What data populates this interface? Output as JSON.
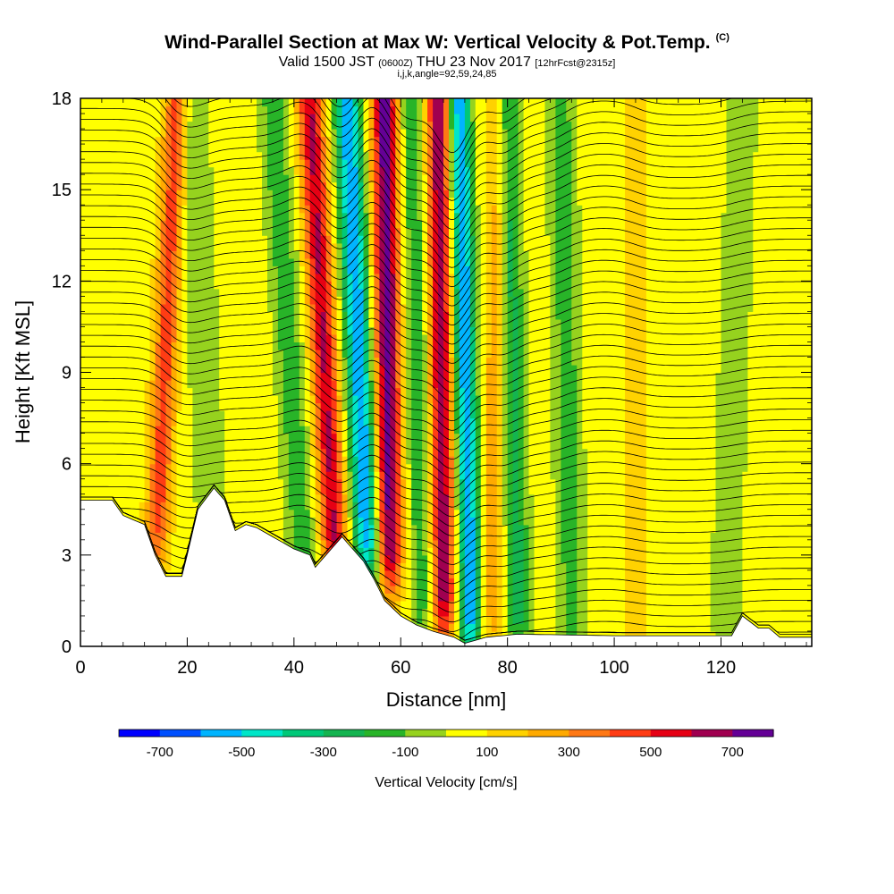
{
  "header": {
    "title": "Wind-Parallel Section at Max W: Vertical Velocity & Pot.Temp.",
    "title_tag": "(C)",
    "valid_prefix": "Valid 1500 JST",
    "valid_utc": "(0600Z)",
    "valid_date": "THU 23 Nov 2017",
    "forecast": "[12hrFcst@2315z]",
    "params": "i,j,k,angle=92,59,24,85"
  },
  "chart_data": {
    "type": "heatmap",
    "xlabel": "Distance [nm]",
    "ylabel": "Height [Kft MSL]",
    "xlim": [
      0,
      137
    ],
    "ylim": [
      0,
      18
    ],
    "x_ticks": [
      0,
      20,
      40,
      60,
      80,
      100,
      120
    ],
    "y_ticks": [
      0,
      3,
      6,
      9,
      12,
      15,
      18
    ],
    "colorbar": {
      "title": "Vertical Velocity [cm/s]",
      "min": -800,
      "max": 800,
      "step": 100,
      "tick_labels": [
        "-700",
        "-500",
        "-300",
        "-100",
        "100",
        "300",
        "500",
        "700"
      ],
      "tick_values": [
        -700,
        -500,
        -300,
        -100,
        100,
        300,
        500,
        700
      ],
      "colors": [
        "#0000ff",
        "#0050ff",
        "#00b4ff",
        "#00e6c8",
        "#00c878",
        "#14b450",
        "#28b428",
        "#96d21e",
        "#ffff00",
        "#ffd200",
        "#ffaa00",
        "#ff7814",
        "#ff3c14",
        "#e60014",
        "#a00050",
        "#640096"
      ]
    },
    "terrain_kft": [
      [
        0,
        4.8
      ],
      [
        6,
        4.8
      ],
      [
        8,
        4.3
      ],
      [
        12,
        4.0
      ],
      [
        14,
        3.0
      ],
      [
        16,
        2.3
      ],
      [
        19,
        2.3
      ],
      [
        20,
        3.0
      ],
      [
        22,
        4.5
      ],
      [
        25,
        5.2
      ],
      [
        27,
        4.8
      ],
      [
        29,
        3.8
      ],
      [
        31,
        4.0
      ],
      [
        33,
        3.9
      ],
      [
        38,
        3.4
      ],
      [
        40,
        3.2
      ],
      [
        43,
        3.0
      ],
      [
        44,
        2.6
      ],
      [
        46,
        3.0
      ],
      [
        49,
        3.6
      ],
      [
        53,
        2.8
      ],
      [
        55,
        2.2
      ],
      [
        57,
        1.5
      ],
      [
        60,
        1.0
      ],
      [
        63,
        0.7
      ],
      [
        66,
        0.5
      ],
      [
        70,
        0.3
      ],
      [
        72,
        0.1
      ],
      [
        76,
        0.3
      ],
      [
        82,
        0.4
      ],
      [
        100,
        0.35
      ],
      [
        122,
        0.35
      ],
      [
        124,
        1.0
      ],
      [
        127,
        0.6
      ],
      [
        129,
        0.6
      ],
      [
        131,
        0.3
      ],
      [
        137,
        0.3
      ]
    ],
    "w_cm_s": {
      "background": 50,
      "bands": [
        {
          "x_base": 14,
          "x_top": 18,
          "peak": 400,
          "width": 2.2,
          "bottom": 4.0
        },
        {
          "x_base": 25,
          "x_top": 21,
          "peak": -150,
          "width": 2.8,
          "bottom": 5.0
        },
        {
          "x_base": 42,
          "x_top": 36,
          "peak": -220,
          "width": 2.6,
          "bottom": 3.0
        },
        {
          "x_base": 48,
          "x_top": 43,
          "peak": 560,
          "width": 2.4,
          "bottom": 3.5
        },
        {
          "x_base": 54,
          "x_top": 50,
          "peak": -650,
          "width": 2.4,
          "bottom": 3.5
        },
        {
          "x_base": 58,
          "x_top": 57,
          "peak": 700,
          "width": 2.4,
          "bottom": 3.2
        },
        {
          "x_base": 64,
          "x_top": 62,
          "peak": -220,
          "width": 2.4,
          "bottom": 1.5
        },
        {
          "x_base": 68,
          "x_top": 67,
          "peak": 620,
          "width": 2.2,
          "bottom": 1.5
        },
        {
          "x_base": 73,
          "x_top": 71,
          "peak": -650,
          "width": 2.0,
          "bottom": 1.0
        },
        {
          "x_base": 77,
          "x_top": 78,
          "peak": 200,
          "width": 2.0,
          "bottom": 1.0
        },
        {
          "x_base": 82,
          "x_top": 80,
          "peak": -280,
          "width": 2.2,
          "bottom": 0.8
        },
        {
          "x_base": 92,
          "x_top": 90,
          "peak": -200,
          "width": 2.6,
          "bottom": 0.8
        },
        {
          "x_base": 104,
          "x_top": 104,
          "peak": 130,
          "width": 2.4,
          "bottom": 0.5
        },
        {
          "x_base": 121,
          "x_top": 124,
          "peak": -120,
          "width": 3.0,
          "bottom": 1.0
        }
      ]
    },
    "theta_contours_k": [
      276,
      277,
      278,
      279,
      280,
      281,
      282,
      283,
      284,
      285,
      286,
      287,
      288,
      289,
      290,
      291,
      292,
      293,
      294,
      295,
      296,
      297,
      298,
      299,
      300,
      301,
      302,
      303,
      304,
      305,
      306,
      307,
      308,
      309,
      310,
      311,
      312,
      313,
      314,
      315,
      316,
      317,
      318,
      319,
      320,
      321,
      322,
      323,
      324,
      325,
      326,
      327,
      328,
      329,
      330
    ]
  }
}
